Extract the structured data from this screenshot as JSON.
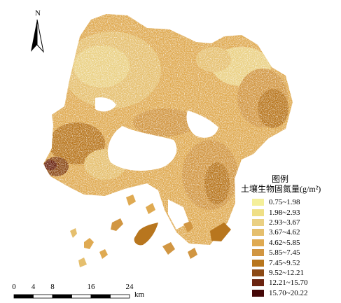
{
  "north_arrow": {
    "label": "N"
  },
  "legend": {
    "title": "图例",
    "subtitle": "土壤生物固氮量(g/m²)",
    "items": [
      {
        "label": "0.75~1.98",
        "color": "#f4ef9a"
      },
      {
        "label": "1.98~2.93",
        "color": "#efdf86"
      },
      {
        "label": "2.93~3.67",
        "color": "#ead083"
      },
      {
        "label": "3.67~4.62",
        "color": "#e5bf6e"
      },
      {
        "label": "4.62~5.85",
        "color": "#dfaa52"
      },
      {
        "label": "5.85~7.45",
        "color": "#d19642"
      },
      {
        "label": "7.45~9.52",
        "color": "#b8761e"
      },
      {
        "label": "9.52~12.21",
        "color": "#8c4a16"
      },
      {
        "label": "12.21~15.70",
        "color": "#6b2410"
      },
      {
        "label": "15.70~20.22",
        "color": "#450808"
      }
    ]
  },
  "scale_bar": {
    "ticks": [
      {
        "label": "0",
        "km": 0
      },
      {
        "label": "4",
        "km": 4
      },
      {
        "label": "8",
        "km": 8
      },
      {
        "label": "16",
        "km": 16
      },
      {
        "label": "24",
        "km": 24
      }
    ],
    "unit": "km"
  }
}
